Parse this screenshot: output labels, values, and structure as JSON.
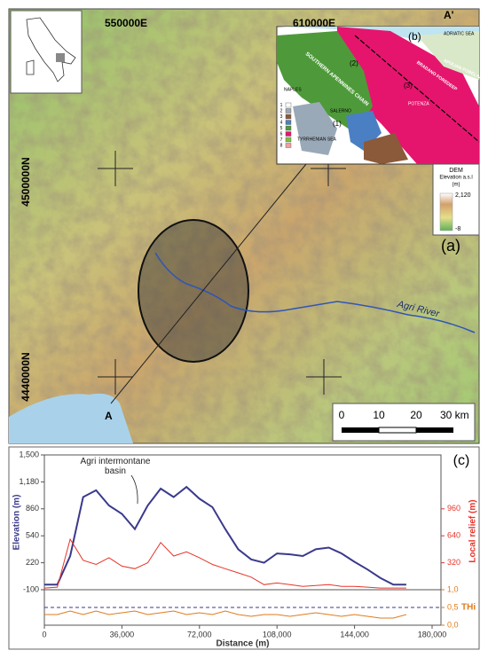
{
  "map": {
    "panel_label": "(a)",
    "easting_labels": [
      "550000E",
      "610000E"
    ],
    "northing_labels": [
      "4500000N",
      "4440000N"
    ],
    "profile_ends": [
      "A",
      "A'"
    ],
    "river_label": "Agri River",
    "scale_labels": [
      "0",
      "10",
      "20",
      "30 km"
    ]
  },
  "legend": {
    "title": "DEM",
    "subtitle": "Elevation a.s.l",
    "unit": "(m)",
    "max": "2,120",
    "min": "-8"
  },
  "inset": {
    "panel_label": "(b)",
    "labels": [
      "ADRIATIC SEA",
      "BRADANO FOREDEEP",
      "APULIAN FORELAND",
      "SOUTHERN APENNINES CHAIN",
      "NAPLES",
      "SALERNO",
      "POTENZA",
      "TYRRHENIAN SEA",
      "(1)",
      "(2)",
      "(3)"
    ],
    "legend_numbers": [
      "1",
      "2",
      "3",
      "4",
      "5",
      "6",
      "7",
      "8"
    ]
  },
  "chart_data": {
    "type": "line",
    "panel_label": "(c)",
    "annotation": "Agri intermontane basin",
    "xlabel": "Distance (m)",
    "ylabel": "Elevation (m)",
    "y2label": "Local relief (m)",
    "y3label": "THi",
    "x": [
      0,
      6000,
      12000,
      18000,
      24000,
      30000,
      36000,
      42000,
      48000,
      54000,
      60000,
      66000,
      72000,
      78000,
      84000,
      90000,
      96000,
      102000,
      108000,
      114000,
      120000,
      126000,
      132000,
      138000,
      144000,
      150000,
      156000,
      162000,
      168000
    ],
    "xlim": [
      0,
      180000
    ],
    "xticks": [
      0,
      {
        "value": 36000,
        "label": "36,000"
      },
      {
        "value": 72000,
        "label": "72,000"
      },
      {
        "value": 108000,
        "label": "108,000"
      },
      {
        "value": 144000,
        "label": "144,000"
      },
      {
        "value": 180000,
        "label": "180,000"
      }
    ],
    "ylim": [
      -100,
      1500
    ],
    "yticks": [
      -100,
      220,
      540,
      860,
      {
        "value": 1180,
        "label": "1,180"
      },
      {
        "value": 1500,
        "label": "1,500"
      }
    ],
    "y2lim": [
      0,
      1600
    ],
    "y2ticks": [
      320,
      640,
      960
    ],
    "y3lim": [
      0,
      1
    ],
    "y3ticks": [
      {
        "value": 0,
        "label": "0,0"
      },
      {
        "value": 0.5,
        "label": "0,5"
      },
      {
        "value": 1,
        "label": "1,0"
      }
    ],
    "series": [
      {
        "color": "#3a3a8c",
        "values": [
          -40,
          -40,
          300,
          1000,
          1080,
          900,
          800,
          620,
          900,
          1100,
          1000,
          1120,
          980,
          880,
          620,
          380,
          260,
          220,
          330,
          320,
          300,
          380,
          400,
          330,
          230,
          140,
          40,
          -40,
          -40
        ]
      },
      {
        "color": "#e8342a",
        "axis": "y2",
        "values": [
          20,
          30,
          600,
          350,
          300,
          380,
          280,
          250,
          320,
          560,
          400,
          450,
          380,
          300,
          250,
          200,
          150,
          60,
          80,
          60,
          40,
          50,
          60,
          40,
          40,
          30,
          20,
          20,
          20
        ]
      },
      {
        "color": "#e07b1c",
        "axis": "y3",
        "values": [
          0.3,
          0.3,
          0.4,
          0.3,
          0.4,
          0.3,
          0.35,
          0.4,
          0.3,
          0.35,
          0.4,
          0.3,
          0.35,
          0.3,
          0.4,
          0.3,
          0.25,
          0.3,
          0.3,
          0.25,
          0.3,
          0.35,
          0.3,
          0.25,
          0.3,
          0.25,
          0.2,
          0.2,
          0.3
        ]
      }
    ]
  }
}
